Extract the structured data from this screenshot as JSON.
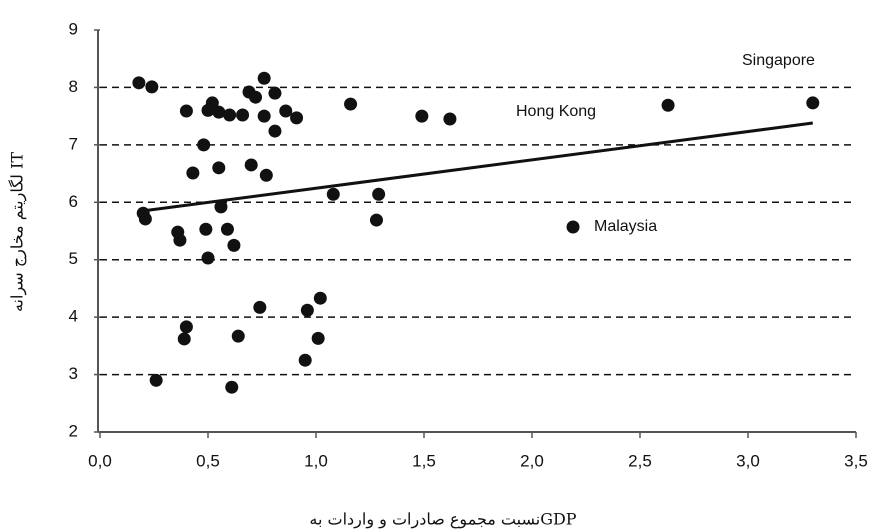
{
  "chart_data": {
    "type": "scatter",
    "x_label": "نسبت مجموع صادرات و واردات بهGDP",
    "y_label": "لگاریتم مخارج سرانه IT",
    "xlim": [
      0,
      3.5
    ],
    "ylim": [
      2,
      9
    ],
    "xticks": [
      {
        "value": 0,
        "label": "0,0"
      },
      {
        "value": 0.5,
        "label": "0,5"
      },
      {
        "value": 1,
        "label": "1,0"
      },
      {
        "value": 1.5,
        "label": "1,5"
      },
      {
        "value": 2,
        "label": "2,0"
      },
      {
        "value": 2.5,
        "label": "2,5"
      },
      {
        "value": 3,
        "label": "3,0"
      },
      {
        "value": 3.5,
        "label": "3,5"
      }
    ],
    "yticks": [
      2,
      3,
      4,
      5,
      6,
      7,
      8,
      9
    ],
    "grid": true,
    "color": "#111111",
    "x": [
      0.18,
      0.24,
      0.4,
      0.5,
      0.52,
      0.55,
      0.6,
      0.66,
      0.76,
      0.69,
      0.72,
      0.76,
      0.81,
      0.86,
      0.91,
      0.81,
      1.16,
      1.49,
      1.62,
      2.63,
      3.3,
      0.48,
      0.43,
      0.55,
      0.7,
      0.77,
      0.56,
      0.2,
      0.21,
      0.36,
      0.37,
      0.49,
      0.59,
      0.62,
      0.5,
      1.08,
      1.29,
      1.28,
      2.19,
      0.4,
      0.39,
      0.74,
      1.02,
      0.96,
      1.01,
      0.64,
      0.95,
      0.26,
      0.61
    ],
    "values": [
      8.08,
      8.01,
      7.59,
      7.6,
      7.73,
      7.57,
      7.52,
      7.52,
      7.5,
      7.92,
      7.83,
      8.16,
      7.9,
      7.59,
      7.47,
      7.24,
      7.71,
      7.5,
      7.45,
      7.69,
      7.73,
      7.0,
      6.51,
      6.6,
      6.65,
      6.47,
      5.92,
      5.81,
      5.71,
      5.48,
      5.34,
      5.53,
      5.53,
      5.25,
      5.03,
      6.14,
      6.14,
      5.69,
      5.57,
      3.83,
      3.62,
      4.17,
      4.33,
      4.12,
      3.63,
      3.67,
      3.25,
      2.9,
      2.78
    ],
    "trendline": {
      "x": [
        0.2,
        3.3
      ],
      "values": [
        5.85,
        7.38
      ]
    },
    "annotations": [
      "Singapore",
      "Hong Kong",
      "Malaysia"
    ]
  }
}
